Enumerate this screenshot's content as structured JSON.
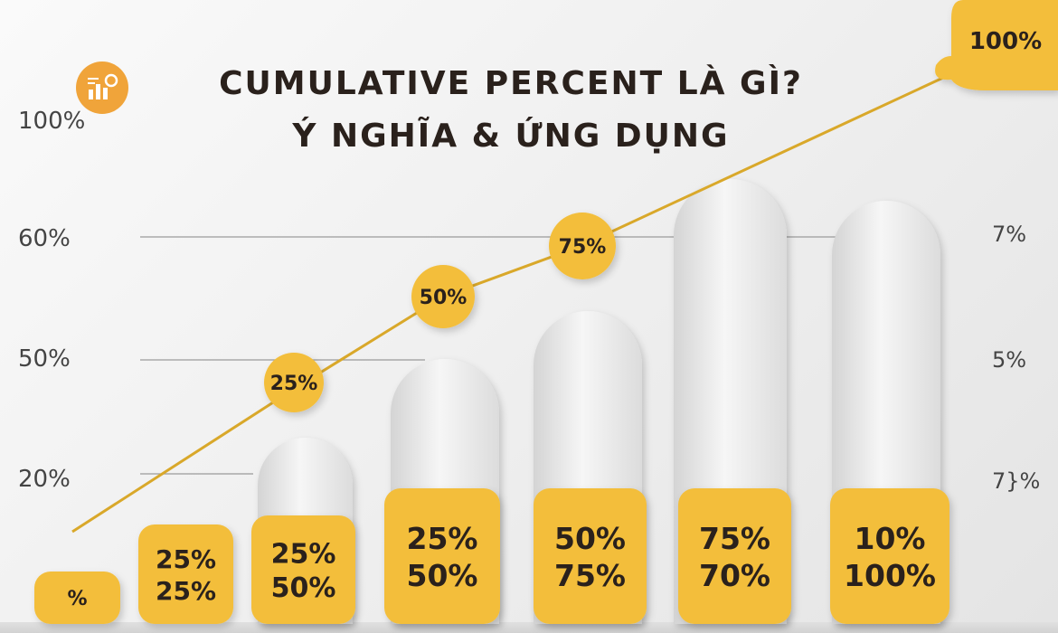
{
  "title_line_1": "CUMULATIVE PERCENT LÀ GÌ?",
  "title_line_2": "Ý NGHĨA & ỨNG DỤNG",
  "logo_icon": "chart-analytics-icon",
  "colors": {
    "accent": "#F3BE3A",
    "line": "#D9A82A",
    "text": "#2A211C",
    "axis_text": "#444444",
    "gridline": "#9A9A9A",
    "column": "#E8E8E8"
  },
  "chart_data": {
    "type": "bar",
    "left_axis_ticks": [
      "100%",
      "60%",
      "50%",
      "20%"
    ],
    "right_axis_ticks": [
      "7%",
      "5%",
      "7}%"
    ],
    "grid": true,
    "bars": [
      {
        "labels": [
          "%"
        ]
      },
      {
        "labels": [
          "25%",
          "25%"
        ]
      },
      {
        "labels": [
          "25%",
          "50%"
        ]
      },
      {
        "labels": [
          "25%",
          "50%"
        ]
      },
      {
        "labels": [
          "50%",
          "75%"
        ]
      },
      {
        "labels": [
          "75%",
          "70%"
        ]
      },
      {
        "labels": [
          "10%",
          "100%"
        ]
      }
    ],
    "cumulative_line": {
      "markers": [
        "25%",
        "50%",
        "75%",
        "100%"
      ]
    }
  }
}
